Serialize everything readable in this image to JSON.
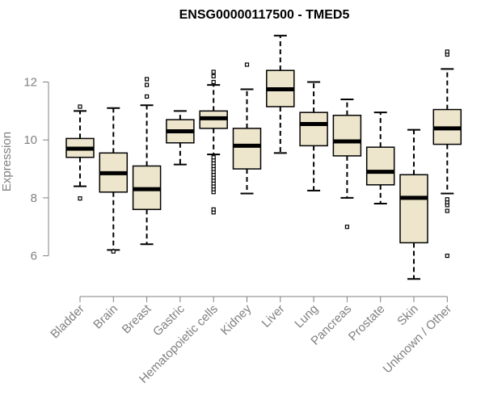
{
  "chart_data": {
    "type": "boxplot",
    "title": "ENSG00000117500 - TMED5",
    "xlabel": "",
    "ylabel": "Expression",
    "ylim": [
      4.9,
      13.8
    ],
    "yticks": [
      6,
      8,
      10,
      12
    ],
    "colors": {
      "box_fill": "#ede6cc",
      "box_stroke": "#000000",
      "median": "#000000",
      "axis": "#808080",
      "text": "#808080"
    },
    "categories": [
      "Bladder",
      "Brain",
      "Breast",
      "Gastric",
      "Hematopoietic cells",
      "Kidney",
      "Liver",
      "Lung",
      "Pancreas",
      "Prostate",
      "Skin",
      "Unknown / Other"
    ],
    "series": [
      {
        "name": "Bladder",
        "whisker_low": 8.4,
        "q1": 9.4,
        "median": 9.7,
        "q3": 10.05,
        "whisker_high": 11.0,
        "outliers": [
          7.98,
          11.15
        ]
      },
      {
        "name": "Brain",
        "whisker_low": 6.2,
        "q1": 8.2,
        "median": 8.85,
        "q3": 9.55,
        "whisker_high": 11.1,
        "outliers": [
          6.15
        ]
      },
      {
        "name": "Breast",
        "whisker_low": 6.4,
        "q1": 7.6,
        "median": 8.3,
        "q3": 9.1,
        "whisker_high": 11.2,
        "outliers": [
          11.5,
          11.9,
          12.1
        ]
      },
      {
        "name": "Gastric",
        "whisker_low": 9.15,
        "q1": 9.9,
        "median": 10.3,
        "q3": 10.7,
        "whisker_high": 11.0,
        "outliers": []
      },
      {
        "name": "Hematopoietic cells",
        "whisker_low": 9.5,
        "q1": 10.4,
        "median": 10.75,
        "q3": 11.0,
        "whisker_high": 11.9,
        "outliers": [
          7.5,
          7.6,
          8.2,
          8.3,
          8.4,
          8.5,
          8.6,
          8.7,
          8.8,
          8.9,
          9.0,
          9.1,
          9.2,
          9.3,
          9.4,
          12.0,
          12.2,
          12.35
        ]
      },
      {
        "name": "Kidney",
        "whisker_low": 8.15,
        "q1": 9.0,
        "median": 9.8,
        "q3": 10.4,
        "whisker_high": 11.75,
        "outliers": [
          12.6
        ]
      },
      {
        "name": "Liver",
        "whisker_low": 9.55,
        "q1": 11.15,
        "median": 11.75,
        "q3": 12.4,
        "whisker_high": 13.6,
        "outliers": []
      },
      {
        "name": "Lung",
        "whisker_low": 8.25,
        "q1": 9.8,
        "median": 10.55,
        "q3": 10.95,
        "whisker_high": 12.0,
        "outliers": []
      },
      {
        "name": "Pancreas",
        "whisker_low": 8.0,
        "q1": 9.45,
        "median": 9.95,
        "q3": 10.85,
        "whisker_high": 11.4,
        "outliers": [
          7.0
        ]
      },
      {
        "name": "Prostate",
        "whisker_low": 7.8,
        "q1": 8.45,
        "median": 8.9,
        "q3": 9.75,
        "whisker_high": 10.95,
        "outliers": []
      },
      {
        "name": "Skin",
        "whisker_low": 5.2,
        "q1": 6.45,
        "median": 8.0,
        "q3": 8.8,
        "whisker_high": 10.35,
        "outliers": []
      },
      {
        "name": "Unknown / Other",
        "whisker_low": 8.15,
        "q1": 9.85,
        "median": 10.4,
        "q3": 11.05,
        "whisker_high": 12.45,
        "outliers": [
          6.0,
          7.55,
          7.75,
          7.85,
          7.95,
          12.95,
          13.05
        ]
      }
    ]
  }
}
